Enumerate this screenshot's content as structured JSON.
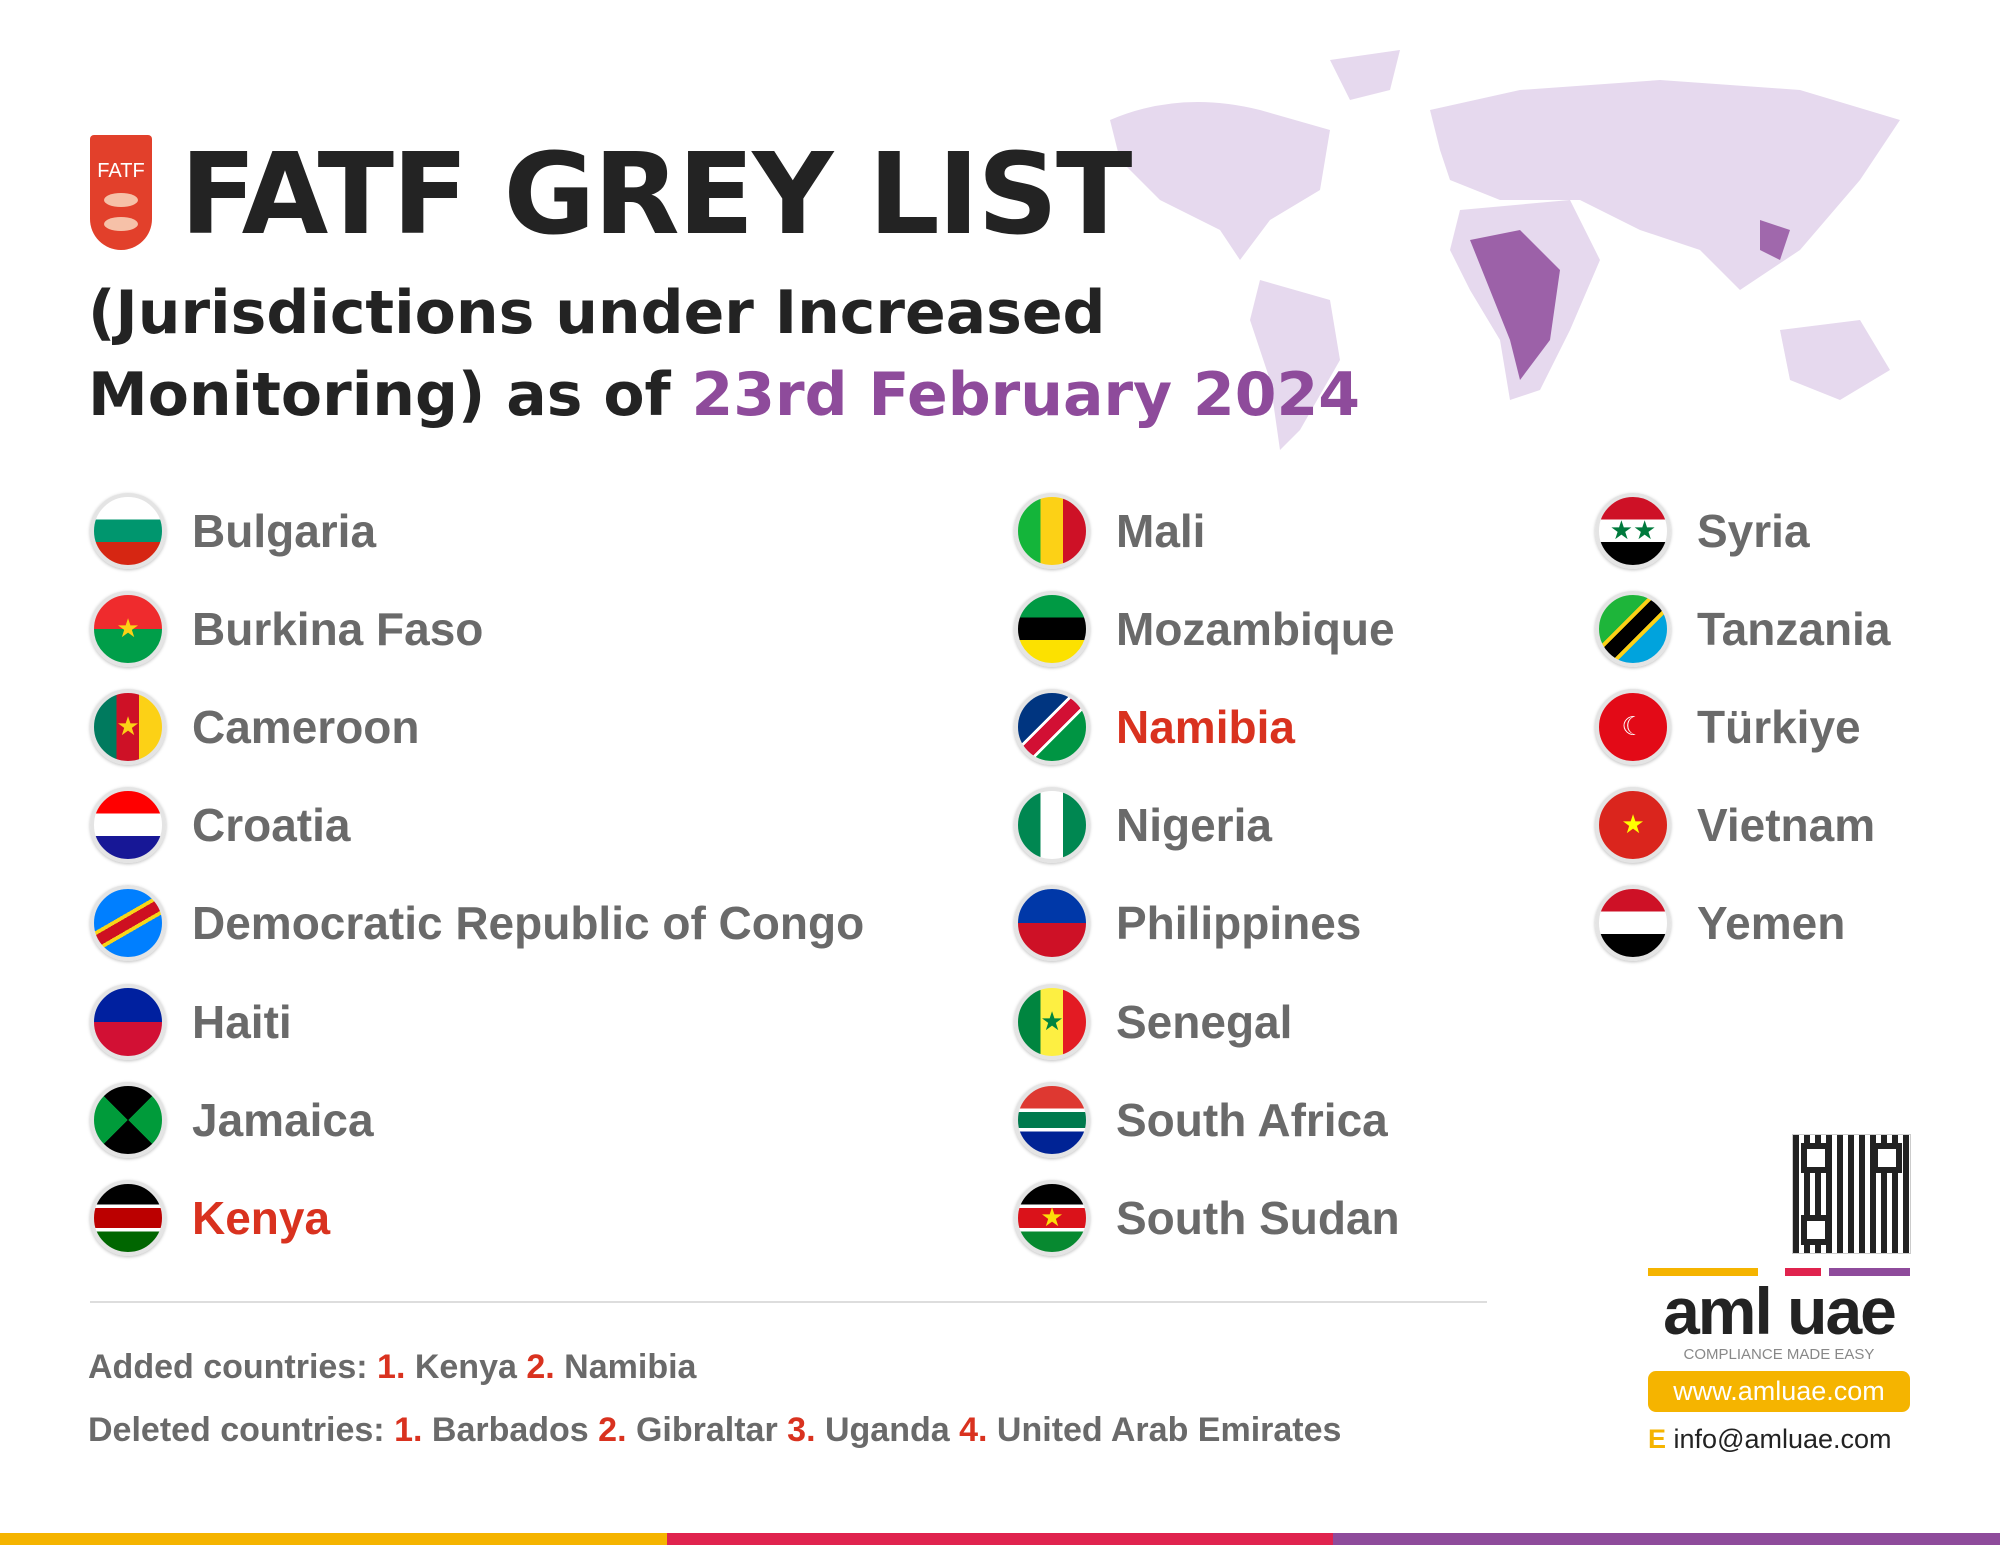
{
  "header": {
    "logo_text": "FATF",
    "title": "FATF GREY LIST",
    "subtitle_line1": "(Jurisdictions under Increased",
    "subtitle_line2": "Monitoring) as of ",
    "date": "23rd February 2024"
  },
  "columns": [
    [
      {
        "name": "Bulgaria",
        "flag": "bg"
      },
      {
        "name": "Burkina Faso",
        "flag": "bf"
      },
      {
        "name": "Cameroon",
        "flag": "cm"
      },
      {
        "name": "Croatia",
        "flag": "hr"
      },
      {
        "name": "Democratic Republic of Congo",
        "flag": "cd"
      },
      {
        "name": "Haiti",
        "flag": "ht"
      },
      {
        "name": "Jamaica",
        "flag": "jm"
      },
      {
        "name": "Kenya",
        "flag": "ke",
        "added": true
      }
    ],
    [
      {
        "name": "Mali",
        "flag": "ml"
      },
      {
        "name": "Mozambique",
        "flag": "mz"
      },
      {
        "name": "Namibia",
        "flag": "na",
        "added": true
      },
      {
        "name": "Nigeria",
        "flag": "ng"
      },
      {
        "name": "Philippines",
        "flag": "ph"
      },
      {
        "name": "Senegal",
        "flag": "sn"
      },
      {
        "name": "South Africa",
        "flag": "za"
      },
      {
        "name": "South Sudan",
        "flag": "ss"
      }
    ],
    [
      {
        "name": "Syria",
        "flag": "sy"
      },
      {
        "name": "Tanzania",
        "flag": "tz"
      },
      {
        "name": "Türkiye",
        "flag": "tr"
      },
      {
        "name": "Vietnam",
        "flag": "vn"
      },
      {
        "name": "Yemen",
        "flag": "ye"
      }
    ]
  ],
  "changes": {
    "added_label": "Added countries:",
    "added": [
      {
        "n": "1.",
        "c": "Kenya"
      },
      {
        "n": "2.",
        "c": "Namibia"
      }
    ],
    "deleted_label": "Deleted countries:",
    "deleted": [
      {
        "n": "1.",
        "c": "Barbados"
      },
      {
        "n": "2.",
        "c": "Gibraltar"
      },
      {
        "n": "3.",
        "c": "Uganda"
      },
      {
        "n": "4.",
        "c": "United Arab Emirates"
      }
    ]
  },
  "brand": {
    "name": "aml uae",
    "tagline": "COMPLIANCE MADE EASY",
    "website": "www.amluae.com",
    "email_prefix": "E",
    "email": "info@amluae.com",
    "watermark": "aml uae"
  },
  "colors": {
    "accent_purple": "#8e4b9b",
    "highlight_red": "#d9321f",
    "orange": "#f5b400",
    "pink": "#e0234e",
    "map": "#e6d9ee",
    "map_highlight": "#8e4b9b"
  }
}
